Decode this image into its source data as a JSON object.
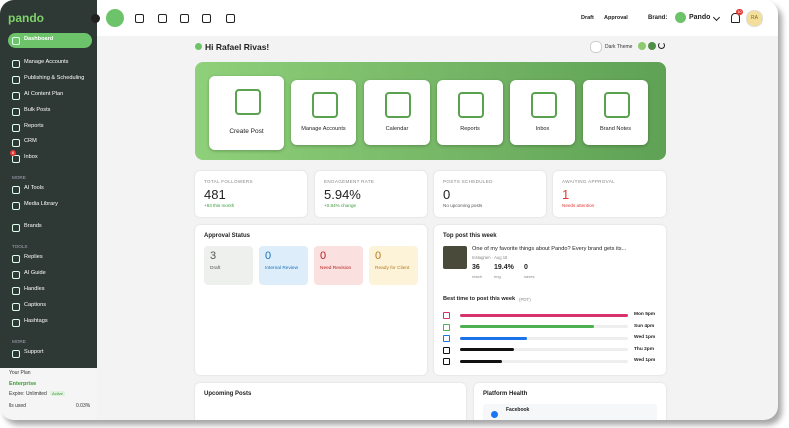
{
  "sidebar": {
    "logo": "pando",
    "nav": [
      "Dashboard",
      "Manage Accounts",
      "Publishing & Scheduling",
      "AI Content Plan",
      "Bulk Posts",
      "Reports",
      "CRM",
      "Inbox"
    ],
    "inbox_badge": "6",
    "more_heading": "MORE",
    "more": [
      "AI Tools",
      "Media Library"
    ],
    "brands": "Brands",
    "tools_heading": "TOOLS",
    "tools": [
      "Replies",
      "AI Guide",
      "Handles",
      "Captions",
      "Hashtags"
    ],
    "more2_heading": "MORE",
    "support": "Support",
    "plan": {
      "heading": "Your Plan",
      "name": "Enterprise",
      "expire": "Expire: Unlimited",
      "status": "Active",
      "usage_label": "lls used",
      "usage": "0.03%"
    }
  },
  "topbar": {
    "draft": "Draft",
    "approval": "Approval",
    "brand_label": "Brand:",
    "brand": "Pando",
    "notifications": "10",
    "avatar": "RA"
  },
  "greeting": "Hi Rafael Rivas!",
  "dark_theme": "Dark Theme",
  "actions": [
    "Create Post",
    "Manage Accounts",
    "Calendar",
    "Reports",
    "Inbox",
    "Brand Notes"
  ],
  "stats": [
    {
      "label": "TOTAL FOLLOWERS",
      "value": "481",
      "note": "+83 this month"
    },
    {
      "label": "ENGAGEMENT RATE",
      "value": "5.94%",
      "note": "+0.84% change"
    },
    {
      "label": "POSTS SCHEDULED",
      "value": "0",
      "note": "No upcoming posts"
    },
    {
      "label": "AWAITING APPROVAL",
      "value": "1",
      "note": "Needs attention"
    }
  ],
  "approval": {
    "title": "Approval Status",
    "items": [
      {
        "count": "3",
        "label": "Draft"
      },
      {
        "count": "0",
        "label": "Internal Review"
      },
      {
        "count": "0",
        "label": "Need Revision"
      },
      {
        "count": "0",
        "label": "Ready for Client"
      }
    ]
  },
  "top_post": {
    "title": "Top post this week",
    "text": "One of my favorite things about Pando? Every brand gets its...",
    "meta": "Instagram · Aug 18",
    "metrics": [
      {
        "value": "36",
        "label": "reach"
      },
      {
        "value": "19.4%",
        "label": "eng."
      },
      {
        "value": "0",
        "label": "saves"
      }
    ]
  },
  "best_time": {
    "title": "Best time to post this week",
    "tz": "(PDT)",
    "rows": [
      "Mon 5pm",
      "Sun 4pm",
      "Wed 1pm",
      "Thu 2pm",
      "Wed 1pm"
    ]
  },
  "upcoming": {
    "title": "Upcoming Posts"
  },
  "platform_health": {
    "title": "Platform Health",
    "first": "Facebook"
  }
}
